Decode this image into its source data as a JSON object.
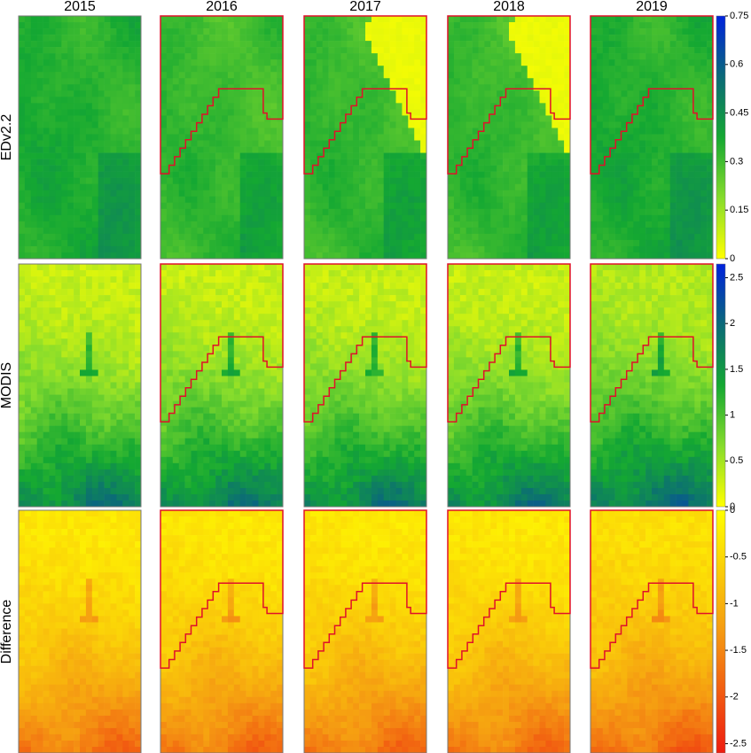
{
  "columns": [
    "2015",
    "2016",
    "2017",
    "2018",
    "2019"
  ],
  "rows": [
    {
      "label": "EDv2.2",
      "colorbar": {
        "lim": [
          0,
          0.75
        ],
        "ticks": [
          0,
          0.15,
          0.3,
          0.45,
          0.6,
          0.75
        ],
        "colors": [
          "#ffff00",
          "#86dc2c",
          "#14a832",
          "#0b6a78",
          "#0022dd"
        ]
      }
    },
    {
      "label": "MODIS",
      "colorbar": {
        "lim": [
          0,
          2.65
        ],
        "ticks": [
          0,
          0.5,
          1,
          1.5,
          2,
          2.5
        ],
        "colors": [
          "#ffff00",
          "#86dc2c",
          "#14a832",
          "#0b6a78",
          "#0022dd"
        ]
      }
    },
    {
      "label": "Difference",
      "colorbar": {
        "lim": [
          -2.6,
          0
        ],
        "ticks": [
          -2.5,
          -2,
          -1.5,
          -1,
          -0.5,
          0
        ],
        "colors": [
          "#ee1c10",
          "#f59a12",
          "#ffff00"
        ]
      }
    }
  ]
}
